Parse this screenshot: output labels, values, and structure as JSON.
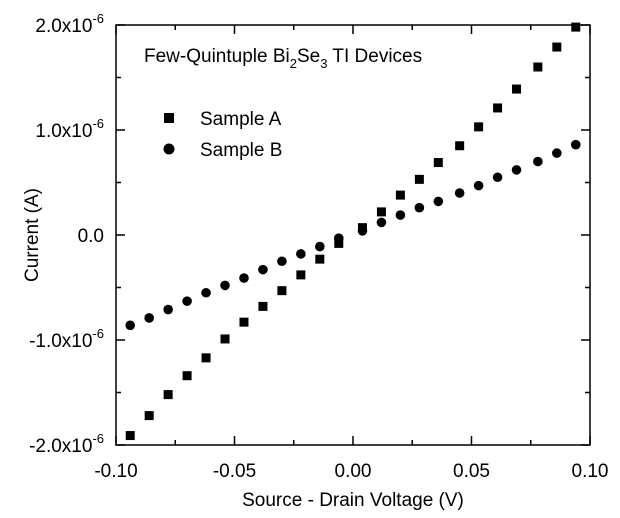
{
  "chart_data": {
    "type": "scatter",
    "title": "Few-Quintuple Bi2Se3 TI Devices",
    "title_parts": [
      "Few-Quintuple Bi",
      "2",
      "Se",
      "3",
      " TI Devices"
    ],
    "xlabel": "Source - Drain Voltage (V)",
    "ylabel": "Current (A)",
    "xlim": [
      -0.1,
      0.1
    ],
    "ylim": [
      -2e-06,
      2e-06
    ],
    "x_ticks": [
      {
        "value": -0.1,
        "label": "-0.10"
      },
      {
        "value": -0.05,
        "label": "-0.05"
      },
      {
        "value": 0.0,
        "label": "0.00"
      },
      {
        "value": 0.05,
        "label": "0.05"
      },
      {
        "value": 0.1,
        "label": "0.10"
      }
    ],
    "y_ticks": [
      {
        "value": 2e-06,
        "mantissa": "2.0x10",
        "exp": "-6"
      },
      {
        "value": 1e-06,
        "mantissa": "1.0x10",
        "exp": "-6"
      },
      {
        "value": 0.0,
        "mantissa": "0.0",
        "exp": ""
      },
      {
        "value": -1e-06,
        "mantissa": "-1.0x10",
        "exp": "-6"
      },
      {
        "value": -2e-06,
        "mantissa": "-2.0x10",
        "exp": "-6"
      }
    ],
    "grid": false,
    "legend_position": "top-left",
    "series": [
      {
        "name": "Sample A",
        "marker": "square",
        "color": "#000000",
        "x": [
          -0.094,
          -0.086,
          -0.078,
          -0.07,
          -0.062,
          -0.054,
          -0.046,
          -0.038,
          -0.03,
          -0.022,
          -0.014,
          -0.006,
          0.004,
          0.012,
          0.02,
          0.028,
          0.036,
          0.045,
          0.053,
          0.061,
          0.069,
          0.078,
          0.086,
          0.094
        ],
        "y": [
          -1.91e-06,
          -1.72e-06,
          -1.52e-06,
          -1.34e-06,
          -1.17e-06,
          -9.9e-07,
          -8.3e-07,
          -6.8e-07,
          -5.3e-07,
          -3.8e-07,
          -2.3e-07,
          -8e-08,
          7e-08,
          2.2e-07,
          3.8e-07,
          5.3e-07,
          6.9e-07,
          8.5e-07,
          1.03e-06,
          1.21e-06,
          1.39e-06,
          1.6e-06,
          1.79e-06,
          1.98e-06
        ]
      },
      {
        "name": "Sample B",
        "marker": "circle",
        "color": "#000000",
        "x": [
          -0.094,
          -0.086,
          -0.078,
          -0.07,
          -0.062,
          -0.054,
          -0.046,
          -0.038,
          -0.03,
          -0.022,
          -0.014,
          -0.006,
          0.004,
          0.012,
          0.02,
          0.028,
          0.036,
          0.045,
          0.053,
          0.061,
          0.069,
          0.078,
          0.086,
          0.094
        ],
        "y": [
          -8.6e-07,
          -7.9e-07,
          -7.1e-07,
          -6.3e-07,
          -5.5e-07,
          -4.8e-07,
          -4.1e-07,
          -3.3e-07,
          -2.5e-07,
          -1.8e-07,
          -1.1e-07,
          -3e-08,
          4e-08,
          1.2e-07,
          1.9e-07,
          2.6e-07,
          3.2e-07,
          4e-07,
          4.7e-07,
          5.5e-07,
          6.2e-07,
          7e-07,
          7.8e-07,
          8.6e-07
        ]
      }
    ]
  }
}
